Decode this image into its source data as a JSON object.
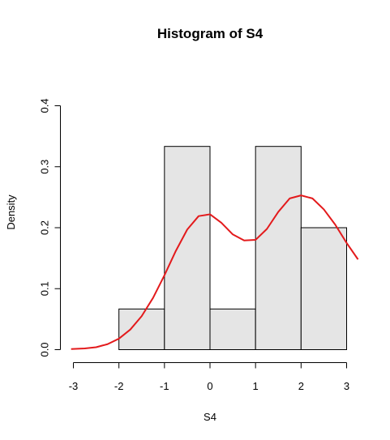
{
  "chart_data": {
    "type": "histogram",
    "title": "Histogram of S4",
    "xlabel": "S4",
    "ylabel": "Density",
    "xlim": [
      -3,
      3.25
    ],
    "ylim": [
      0,
      0.4
    ],
    "x_ticks": [
      "-3",
      "-2",
      "-1",
      "0",
      "1",
      "2",
      "3"
    ],
    "y_ticks": [
      "0.0",
      "0.1",
      "0.2",
      "0.3",
      "0.4"
    ],
    "bins": [
      {
        "from": -2,
        "to": -1,
        "density": 0.0667
      },
      {
        "from": -1,
        "to": 0,
        "density": 0.3333
      },
      {
        "from": 0,
        "to": 1,
        "density": 0.0667
      },
      {
        "from": 1,
        "to": 2,
        "density": 0.3333
      },
      {
        "from": 2,
        "to": 3,
        "density": 0.2
      }
    ],
    "bar_fill": "#e5e5e5",
    "bar_stroke": "#000000",
    "density_curve": {
      "color": "#e31a1c",
      "x": [
        -3.05,
        -2.75,
        -2.5,
        -2.25,
        -2.0,
        -1.75,
        -1.5,
        -1.25,
        -1.0,
        -0.75,
        -0.5,
        -0.25,
        0.0,
        0.25,
        0.5,
        0.75,
        1.0,
        1.25,
        1.5,
        1.75,
        2.0,
        2.25,
        2.5,
        2.75,
        3.0,
        3.25
      ],
      "y": [
        0.001,
        0.002,
        0.004,
        0.009,
        0.018,
        0.033,
        0.055,
        0.085,
        0.122,
        0.162,
        0.197,
        0.219,
        0.222,
        0.208,
        0.189,
        0.179,
        0.18,
        0.198,
        0.226,
        0.248,
        0.253,
        0.248,
        0.23,
        0.205,
        0.175,
        0.148
      ]
    }
  }
}
